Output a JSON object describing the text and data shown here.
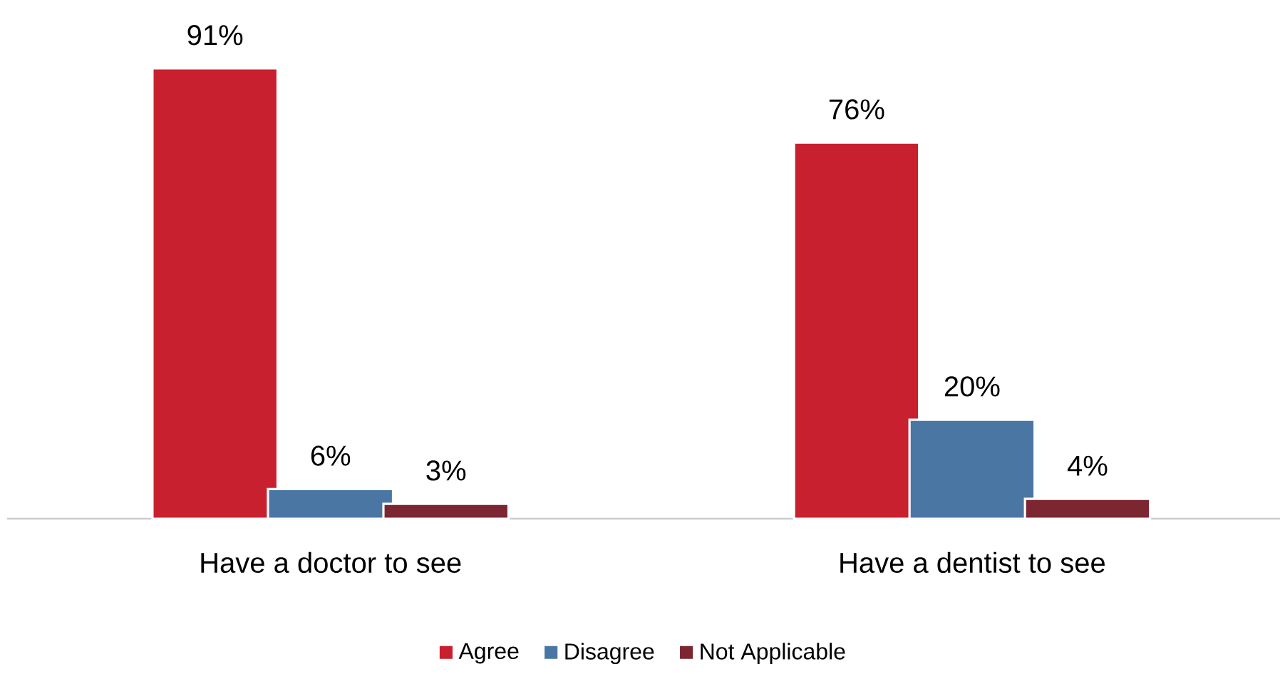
{
  "chart_data": {
    "type": "bar",
    "categories": [
      "Have a doctor to see",
      "Have a dentist to see"
    ],
    "legend": "bottom",
    "series": [
      {
        "name": "Agree",
        "color": "#c8202f",
        "values": [
          91,
          76
        ],
        "value_labels": [
          "91%",
          "76%"
        ]
      },
      {
        "name": "Disagree",
        "color": "#4a76a4",
        "values": [
          6,
          20
        ],
        "value_labels": [
          "6%",
          "20%"
        ]
      },
      {
        "name": "Not Applicable",
        "color": "#7b2631",
        "values": [
          3,
          4
        ],
        "value_labels": [
          "3%",
          "4%"
        ]
      }
    ]
  }
}
